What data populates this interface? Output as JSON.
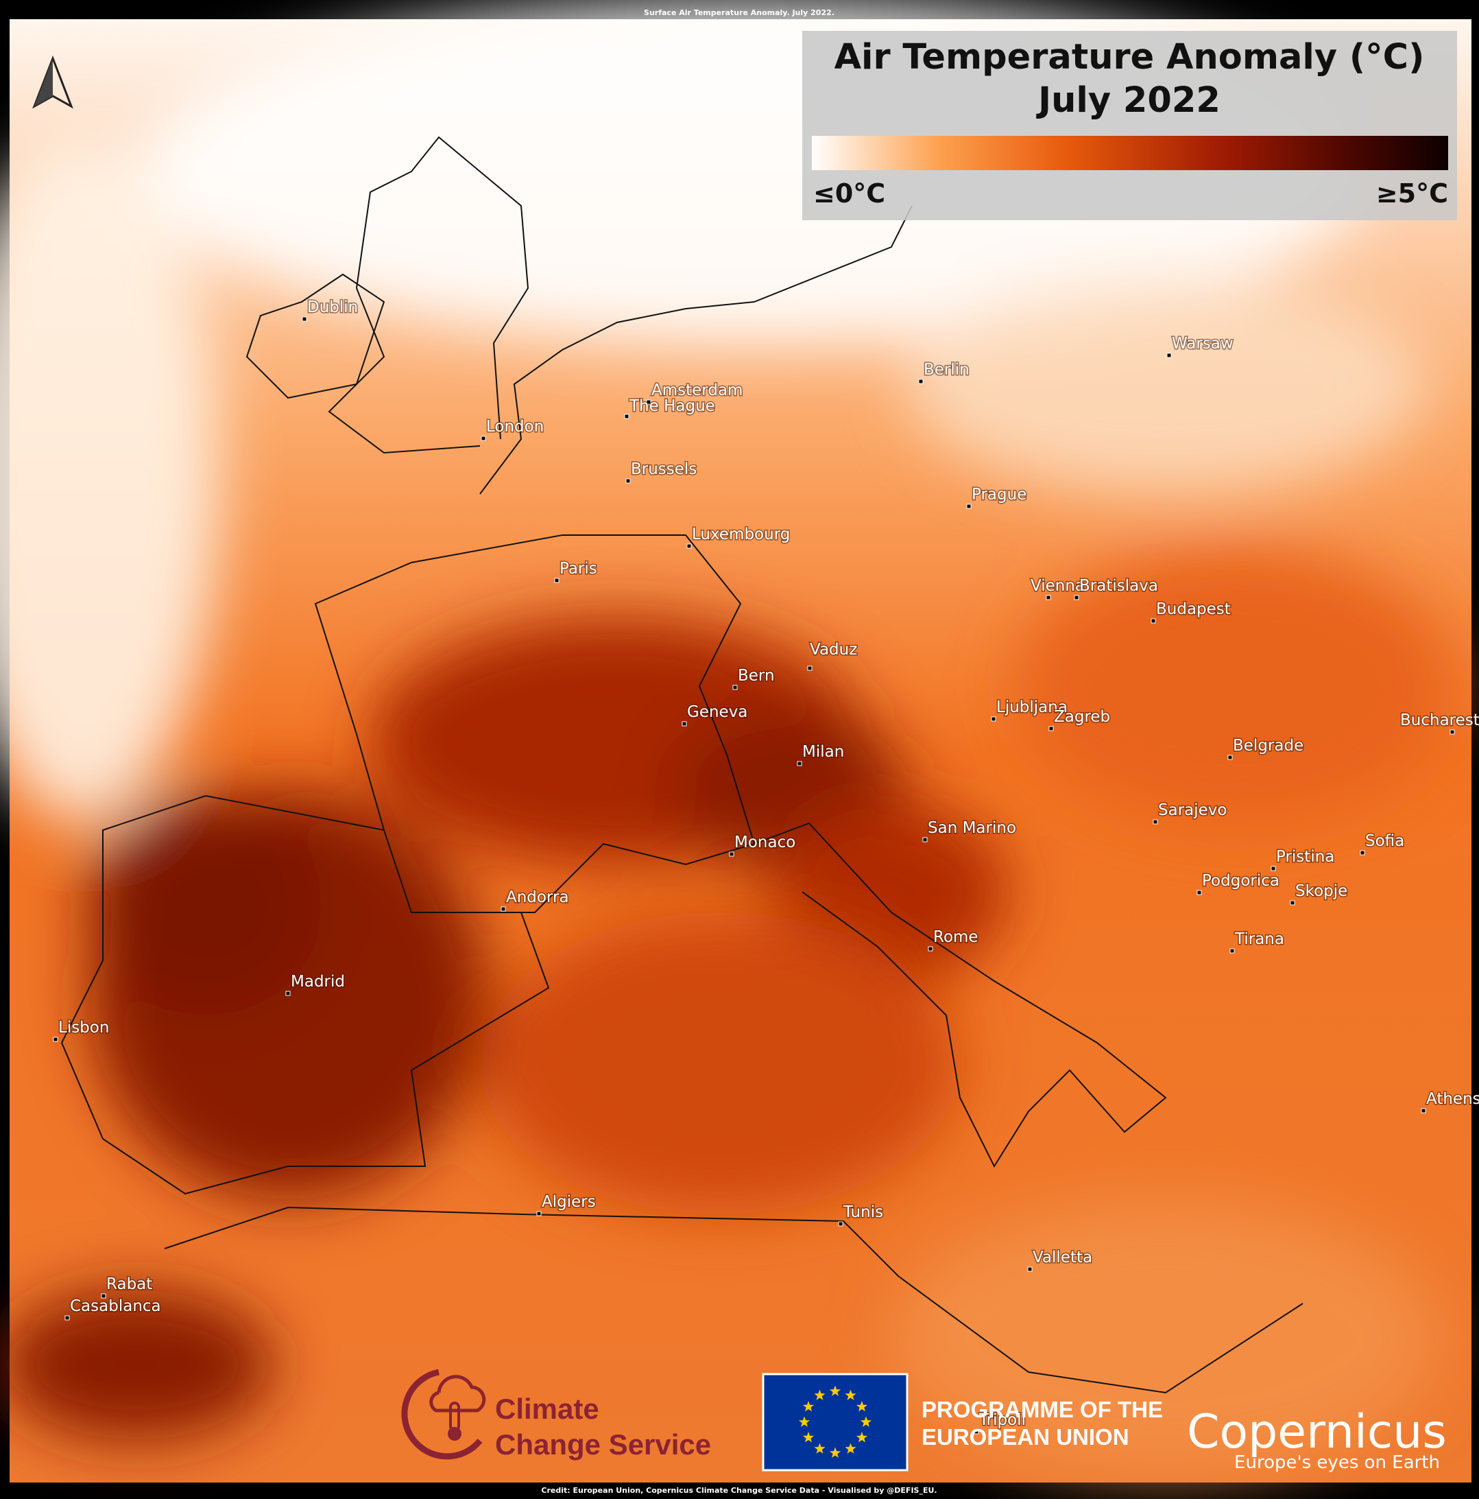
{
  "caption": "Surface Air Temperature Anomaly. July 2022.",
  "legend": {
    "title": "Air Temperature Anomaly (°C)",
    "subtitle": "July 2022",
    "min_label": "≤0°C",
    "max_label": "≥5°C"
  },
  "cities": [
    "Dublin",
    "London",
    "Amsterdam",
    "The Hague",
    "Brussels",
    "Luxembourg",
    "Paris",
    "Berlin",
    "Warsaw",
    "Prague",
    "Vienna",
    "Bratislava",
    "Budapest",
    "Vaduz",
    "Bern",
    "Geneva",
    "Milan",
    "Ljubljana",
    "Zagreb",
    "Bucharest",
    "Belgrade",
    "Sarajevo",
    "San Marino",
    "Monaco",
    "Sofia",
    "Pristina",
    "Podgorica",
    "Skopje",
    "Andorra",
    "Tirana",
    "Rome",
    "Madrid",
    "Lisbon",
    "Athens",
    "Algiers",
    "Tunis",
    "Valletta",
    "Rabat",
    "Casablanca",
    "Tripoli"
  ],
  "logos": {
    "c3s_line1": "Climate",
    "c3s_line2": "Change Service",
    "eu_line1": "PROGRAMME OF THE",
    "eu_line2": "EUROPEAN UNION",
    "copernicus": "Copernicus",
    "copernicus_tagline": "Europe's eyes on Earth"
  },
  "credit": "Credit: European Union, Copernicus Climate Change Service Data - Visualised by @DEFIS_EU."
}
